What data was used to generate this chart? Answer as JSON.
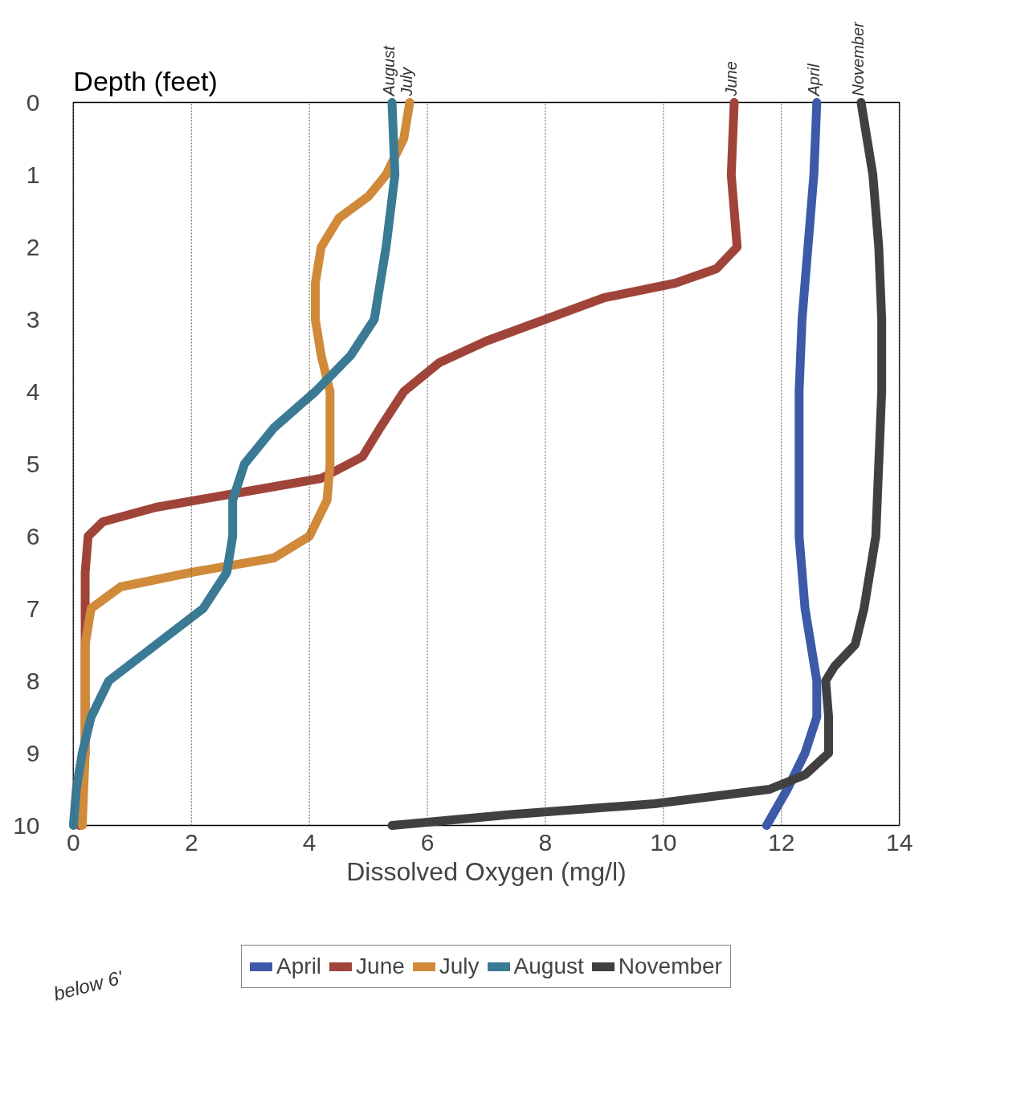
{
  "chart_data": {
    "type": "line",
    "xlabel": "Dissolved Oxygen (mg/l)",
    "ylabel": "Depth (feet)",
    "xlim": [
      0,
      14
    ],
    "xticks": [
      0,
      2,
      4,
      6,
      8,
      10,
      12,
      14
    ],
    "ylim": [
      10,
      0
    ],
    "yticks": [
      0,
      1,
      2,
      3,
      4,
      5,
      6,
      7,
      8,
      9,
      10
    ],
    "grid": "x",
    "legend": "bottom",
    "line_style": "solid",
    "series": [
      {
        "name": "April",
        "color": "#3d5aa8",
        "x": [
          12.6,
          12.55,
          12.45,
          12.35,
          12.3,
          12.3,
          12.3,
          12.4,
          12.6,
          12.6,
          12.4,
          12.1,
          11.75
        ],
        "values": [
          0,
          1,
          2,
          3,
          4,
          5,
          6,
          7,
          8,
          8.5,
          9,
          9.5,
          10
        ]
      },
      {
        "name": "June",
        "color": "#a0443a",
        "x": [
          11.2,
          11.15,
          11.2,
          11.25,
          10.9,
          10.2,
          9.0,
          8.0,
          7.0,
          6.2,
          5.6,
          5.2,
          4.9,
          4.2,
          2.8,
          1.4,
          0.5,
          0.25,
          0.2,
          0.2,
          0.2,
          0.2,
          0.1
        ],
        "values": [
          0,
          1,
          1.5,
          2,
          2.3,
          2.5,
          2.7,
          3,
          3.3,
          3.6,
          4,
          4.5,
          4.9,
          5.2,
          5.4,
          5.6,
          5.8,
          6,
          6.5,
          7,
          8,
          9,
          10
        ]
      },
      {
        "name": "July",
        "color": "#d08a3a",
        "x": [
          5.7,
          5.6,
          5.3,
          5.0,
          4.5,
          4.2,
          4.1,
          4.1,
          4.2,
          4.35,
          4.35,
          4.3,
          4.0,
          3.4,
          2.0,
          0.8,
          0.3,
          0.2,
          0.2,
          0.2,
          0.15
        ],
        "values": [
          0,
          0.5,
          1,
          1.3,
          1.6,
          2,
          2.5,
          3,
          3.5,
          4,
          5,
          5.5,
          6,
          6.3,
          6.5,
          6.7,
          7,
          7.5,
          8,
          9,
          10
        ]
      },
      {
        "name": "August",
        "color": "#3a7a95",
        "x": [
          5.4,
          5.45,
          5.3,
          5.2,
          5.1,
          4.7,
          4.1,
          3.4,
          2.9,
          2.7,
          2.7,
          2.6,
          2.2,
          1.4,
          0.6,
          0.3,
          0.15,
          0.05,
          0.0
        ],
        "values": [
          0,
          1,
          2,
          2.5,
          3,
          3.5,
          4,
          4.5,
          5,
          5.5,
          6,
          6.5,
          7,
          7.5,
          8,
          8.5,
          9,
          9.5,
          10
        ]
      },
      {
        "name": "November",
        "color": "#404040",
        "x": [
          13.35,
          13.55,
          13.65,
          13.7,
          13.7,
          13.65,
          13.6,
          13.4,
          13.25,
          12.9,
          12.75,
          12.8,
          12.8,
          12.4,
          11.8,
          9.85,
          7.4,
          5.4
        ],
        "values": [
          0,
          1,
          2,
          3,
          4,
          5,
          6,
          7,
          7.5,
          7.8,
          8,
          8.5,
          9,
          9.3,
          9.5,
          9.7,
          9.85,
          10
        ]
      }
    ],
    "annotations": [
      {
        "text": "August",
        "x": 5.4,
        "y": 0
      },
      {
        "text": "July",
        "x": 5.7,
        "y": 0
      },
      {
        "text": "June",
        "x": 11.2,
        "y": 0
      },
      {
        "text": "April",
        "x": 12.6,
        "y": 0
      },
      {
        "text": "November",
        "x": 13.35,
        "y": 0
      },
      "below 6'"
    ]
  }
}
